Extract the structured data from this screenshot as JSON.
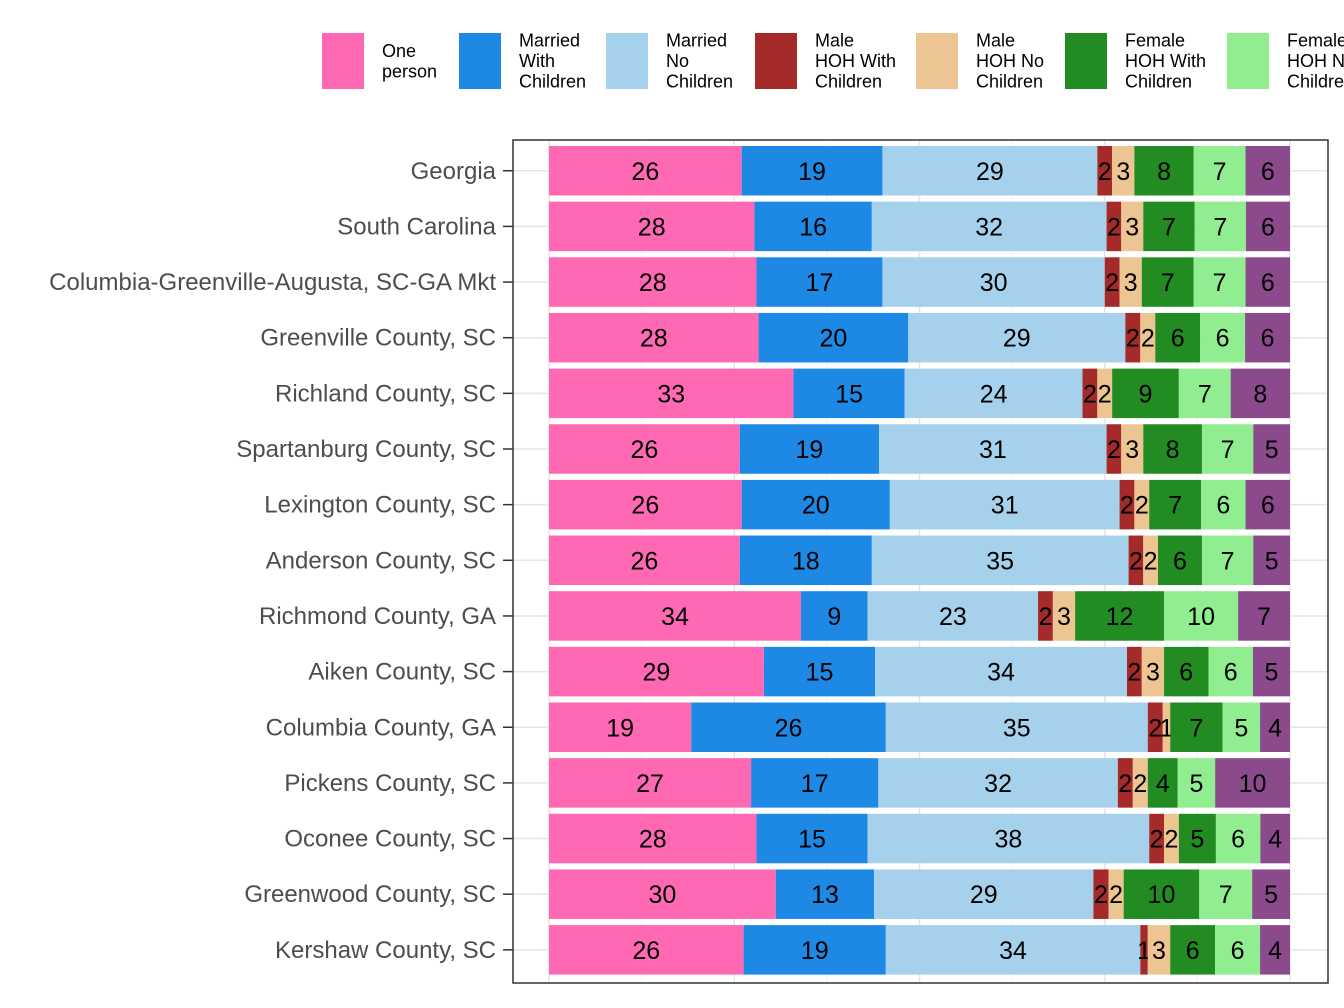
{
  "chart_data": {
    "type": "bar",
    "orientation": "horizontal",
    "stacked": true,
    "normalized": true,
    "grid": true,
    "legend_position": "top",
    "categories": [
      "Georgia",
      "South Carolina",
      "Columbia-Greenville-Augusta, SC-GA Mkt",
      "Greenville County, SC",
      "Richland County, SC",
      "Spartanburg County, SC",
      "Lexington County, SC",
      "Anderson County, SC",
      "Richmond County, GA",
      "Aiken County, SC",
      "Columbia County, GA",
      "Pickens County, SC",
      "Oconee County, SC",
      "Greenwood County, SC",
      "Kershaw County, SC"
    ],
    "series": [
      {
        "name": "One person",
        "legend_lines": [
          "One",
          "person"
        ],
        "color": "#FF69B4",
        "values": [
          26,
          28,
          28,
          28,
          33,
          26,
          26,
          26,
          34,
          29,
          19,
          27,
          28,
          30,
          26
        ]
      },
      {
        "name": "Married With Children",
        "legend_lines": [
          "Married",
          "With",
          "Children"
        ],
        "color": "#1E88E5",
        "values": [
          19,
          16,
          17,
          20,
          15,
          19,
          20,
          18,
          9,
          15,
          26,
          17,
          15,
          13,
          19
        ]
      },
      {
        "name": "Married No Children",
        "legend_lines": [
          "Married",
          "No",
          "Children"
        ],
        "color": "#A6D1EC",
        "values": [
          29,
          32,
          30,
          29,
          24,
          31,
          31,
          35,
          23,
          34,
          35,
          32,
          38,
          29,
          34
        ]
      },
      {
        "name": "Male HOH With Children",
        "legend_lines": [
          "Male",
          "HOH With",
          "Children"
        ],
        "color": "#A52A2A",
        "values": [
          2,
          2,
          2,
          2,
          2,
          2,
          2,
          2,
          2,
          2,
          2,
          2,
          2,
          2,
          1
        ]
      },
      {
        "name": "Male HOH No Children",
        "legend_lines": [
          "Male",
          "HOH No",
          "Children"
        ],
        "color": "#EDC593",
        "values": [
          3,
          3,
          3,
          2,
          2,
          3,
          2,
          2,
          3,
          3,
          1,
          2,
          2,
          2,
          3
        ]
      },
      {
        "name": "Female HOH With Children",
        "legend_lines": [
          "Female",
          "HOH With",
          "Children"
        ],
        "color": "#228B22",
        "values": [
          8,
          7,
          7,
          6,
          9,
          8,
          7,
          6,
          12,
          6,
          7,
          4,
          5,
          10,
          6
        ]
      },
      {
        "name": "Female HOH No Children",
        "legend_lines": [
          "Female",
          "HOH No",
          "Children"
        ],
        "color": "#90EE90",
        "values": [
          7,
          7,
          7,
          6,
          7,
          7,
          6,
          7,
          10,
          6,
          5,
          5,
          6,
          7,
          6
        ]
      },
      {
        "name": "",
        "legend_lines": [],
        "color": "#8B4A8B",
        "values": [
          6,
          6,
          6,
          6,
          8,
          5,
          6,
          5,
          7,
          5,
          4,
          10,
          4,
          5,
          4
        ]
      }
    ]
  }
}
